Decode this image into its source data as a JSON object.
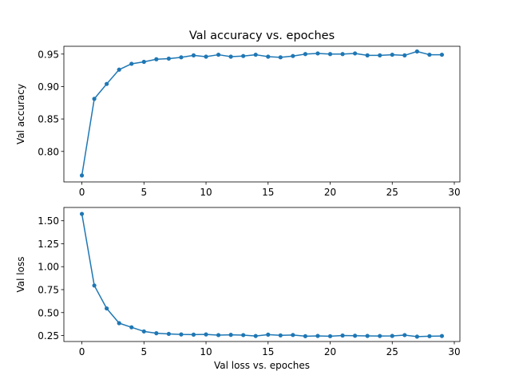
{
  "colors": {
    "series": "#1f77b4",
    "axis": "#000000",
    "background": "#ffffff"
  },
  "chart_data": [
    {
      "type": "line",
      "title": "Val accuracy vs. epoches",
      "xlabel": "",
      "ylabel": "Val accuracy",
      "xlim": [
        -1.45,
        30.45
      ],
      "ylim": [
        0.753,
        0.962
      ],
      "xticks": [
        0,
        5,
        10,
        15,
        20,
        25,
        30
      ],
      "xtick_labels": [
        "0",
        "5",
        "10",
        "15",
        "20",
        "25",
        "30"
      ],
      "yticks": [
        0.8,
        0.85,
        0.9,
        0.95
      ],
      "ytick_labels": [
        "0.80",
        "0.85",
        "0.90",
        "0.95"
      ],
      "grid": false,
      "marker": "dot",
      "x": [
        0,
        1,
        2,
        3,
        4,
        5,
        6,
        7,
        8,
        9,
        10,
        11,
        12,
        13,
        14,
        15,
        16,
        17,
        18,
        19,
        20,
        21,
        22,
        23,
        24,
        25,
        26,
        27,
        28,
        29
      ],
      "series": [
        {
          "values": [
            0.763,
            0.881,
            0.904,
            0.926,
            0.935,
            0.938,
            0.942,
            0.943,
            0.945,
            0.948,
            0.946,
            0.949,
            0.946,
            0.947,
            0.949,
            0.946,
            0.945,
            0.947,
            0.95,
            0.951,
            0.95,
            0.95,
            0.951,
            0.948,
            0.948,
            0.949,
            0.948,
            0.954,
            0.949,
            0.949
          ]
        }
      ]
    },
    {
      "type": "line",
      "title": "",
      "xlabel": "Val loss vs. epoches",
      "ylabel": "Val loss",
      "xlim": [
        -1.45,
        30.45
      ],
      "ylim": [
        0.185,
        1.645
      ],
      "xticks": [
        0,
        5,
        10,
        15,
        20,
        25,
        30
      ],
      "xtick_labels": [
        "0",
        "5",
        "10",
        "15",
        "20",
        "25",
        "30"
      ],
      "yticks": [
        0.25,
        0.5,
        0.75,
        1.0,
        1.25,
        1.5
      ],
      "ytick_labels": [
        "0.25",
        "0.50",
        "0.75",
        "1.00",
        "1.25",
        "1.50"
      ],
      "grid": false,
      "marker": "dot",
      "x": [
        0,
        1,
        2,
        3,
        4,
        5,
        6,
        7,
        8,
        9,
        10,
        11,
        12,
        13,
        14,
        15,
        16,
        17,
        18,
        19,
        20,
        21,
        22,
        23,
        24,
        25,
        26,
        27,
        28,
        29
      ],
      "series": [
        {
          "values": [
            1.575,
            0.795,
            0.545,
            0.385,
            0.34,
            0.295,
            0.275,
            0.268,
            0.262,
            0.26,
            0.262,
            0.255,
            0.258,
            0.255,
            0.245,
            0.26,
            0.252,
            0.256,
            0.243,
            0.246,
            0.243,
            0.25,
            0.248,
            0.246,
            0.245,
            0.246,
            0.255,
            0.238,
            0.243,
            0.245
          ]
        }
      ]
    }
  ]
}
